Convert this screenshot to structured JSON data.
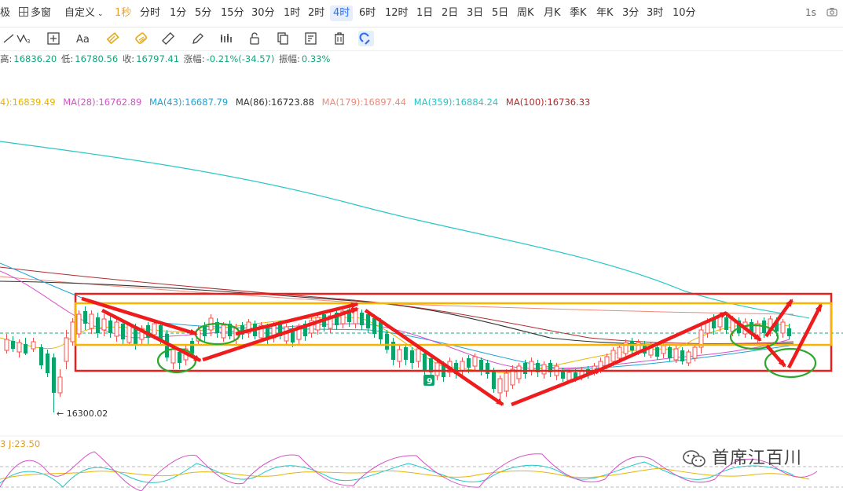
{
  "toolbar": {
    "items": [
      "极",
      "多窗",
      "自定义",
      "1秒",
      "分时",
      "1分",
      "5分",
      "15分",
      "30分",
      "1时",
      "2时",
      "4时",
      "6时",
      "12时",
      "1日",
      "2日",
      "3日",
      "5日",
      "周K",
      "月K",
      "季K",
      "年K",
      "3分",
      "3时",
      "10分"
    ],
    "right_label": "1s",
    "accent": "#2f6ff0"
  },
  "drawing_tools": [
    "line-tool-icon",
    "wave-tool-icon",
    "crosshair-box-icon",
    "text-tool-icon",
    "eraser-icon",
    "magnet-pattern-icon",
    "ruler-icon",
    "pencil-icon",
    "bar-chart-icon",
    "lock-icon",
    "copy-icon",
    "edit-list-icon",
    "trash-icon",
    "magnet-icon"
  ],
  "ohlc": {
    "high_label": "高:",
    "high": "16836.20",
    "low_label": "低:",
    "low": "16780.56",
    "close_label": "收:",
    "close": "16797.41",
    "change_label": "涨幅:",
    "change": "-0.21%(-34.57)",
    "amplitude_label": "振幅:",
    "amplitude": "0.33%"
  },
  "ma_legend": [
    {
      "text": "4):16839.49",
      "color": "#e8b400"
    },
    {
      "text": "MA(28):16762.89",
      "color": "#d651c9"
    },
    {
      "text": "MA(43):16687.79",
      "color": "#1ea3d8"
    },
    {
      "text": "MA(86):16723.88",
      "color": "#333333"
    },
    {
      "text": "MA(179):16897.44",
      "color": "#ee8a7a"
    },
    {
      "text": "MA(359):16884.24",
      "color": "#27c7c7"
    },
    {
      "text": "MA(100):16736.33",
      "color": "#b02c2c"
    }
  ],
  "chart": {
    "low_marker": "← 16300.02",
    "sequence_badge": "9",
    "up_color": "#ef5350",
    "down_color": "#0aa36a"
  },
  "kdj": {
    "label": "3  J:23.50"
  },
  "watermark": {
    "text": "首席江百川"
  }
}
